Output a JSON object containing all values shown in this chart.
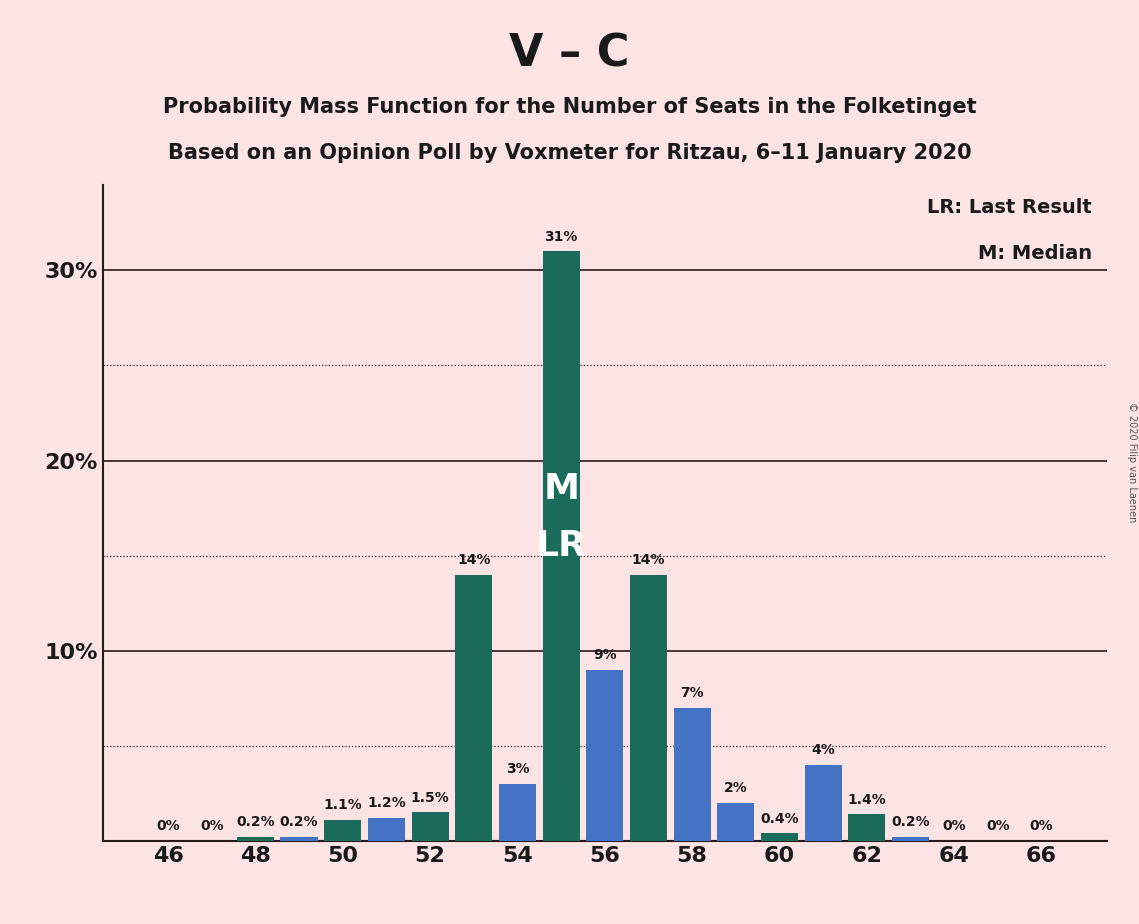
{
  "title": "V – C",
  "subtitle1": "Probability Mass Function for the Number of Seats in the Folketinget",
  "subtitle2": "Based on an Opinion Poll by Voxmeter for Ritzau, 6–11 January 2020",
  "copyright": "© 2020 Filip van Laenen",
  "legend1": "LR: Last Result",
  "legend2": "M: Median",
  "background_color": "#fce4e4",
  "seats": [
    46,
    47,
    48,
    49,
    50,
    51,
    52,
    53,
    54,
    55,
    56,
    57,
    58,
    59,
    60,
    61,
    62,
    63,
    64,
    65,
    66
  ],
  "values": [
    0.0,
    0.0,
    0.002,
    0.002,
    0.011,
    0.012,
    0.015,
    0.14,
    0.03,
    0.31,
    0.09,
    0.14,
    0.07,
    0.02,
    0.004,
    0.04,
    0.014,
    0.002,
    0.0,
    0.0,
    0.0
  ],
  "bar_colors": [
    "#1a6b5a",
    "#4472c4",
    "#1a6b5a",
    "#4472c4",
    "#1a6b5a",
    "#4472c4",
    "#1a6b5a",
    "#1a6b5a",
    "#4472c4",
    "#1a6b5a",
    "#4472c4",
    "#1a6b5a",
    "#4472c4",
    "#4472c4",
    "#1a6b5a",
    "#4472c4",
    "#1a6b5a",
    "#4472c4",
    "#1a6b5a",
    "#4472c4",
    "#1a6b5a"
  ],
  "labels": [
    "0%",
    "0%",
    "0.2%",
    "0.2%",
    "1.1%",
    "1.2%",
    "1.5%",
    "14%",
    "3%",
    "31%",
    "9%",
    "14%",
    "7%",
    "2%",
    "0.4%",
    "4%",
    "1.4%",
    "0.2%",
    "0%",
    "0%",
    "0%"
  ],
  "median_label_seat": 55,
  "solid_lines": [
    0.1,
    0.2,
    0.3
  ],
  "dotted_lines": [
    0.05,
    0.15,
    0.25
  ],
  "ylim": [
    0,
    0.345
  ],
  "ytick_positions": [
    0.1,
    0.2,
    0.3
  ],
  "ytick_labels": [
    "10%",
    "20%",
    "30%"
  ],
  "xtick_positions": [
    46,
    48,
    50,
    52,
    54,
    56,
    58,
    60,
    62,
    64,
    66
  ],
  "xtick_labels": [
    "46",
    "48",
    "50",
    "52",
    "54",
    "56",
    "58",
    "60",
    "62",
    "64",
    "66"
  ],
  "label_fontsize": 10,
  "tick_fontsize": 16,
  "title_fontsize": 32,
  "subtitle_fontsize": 15
}
